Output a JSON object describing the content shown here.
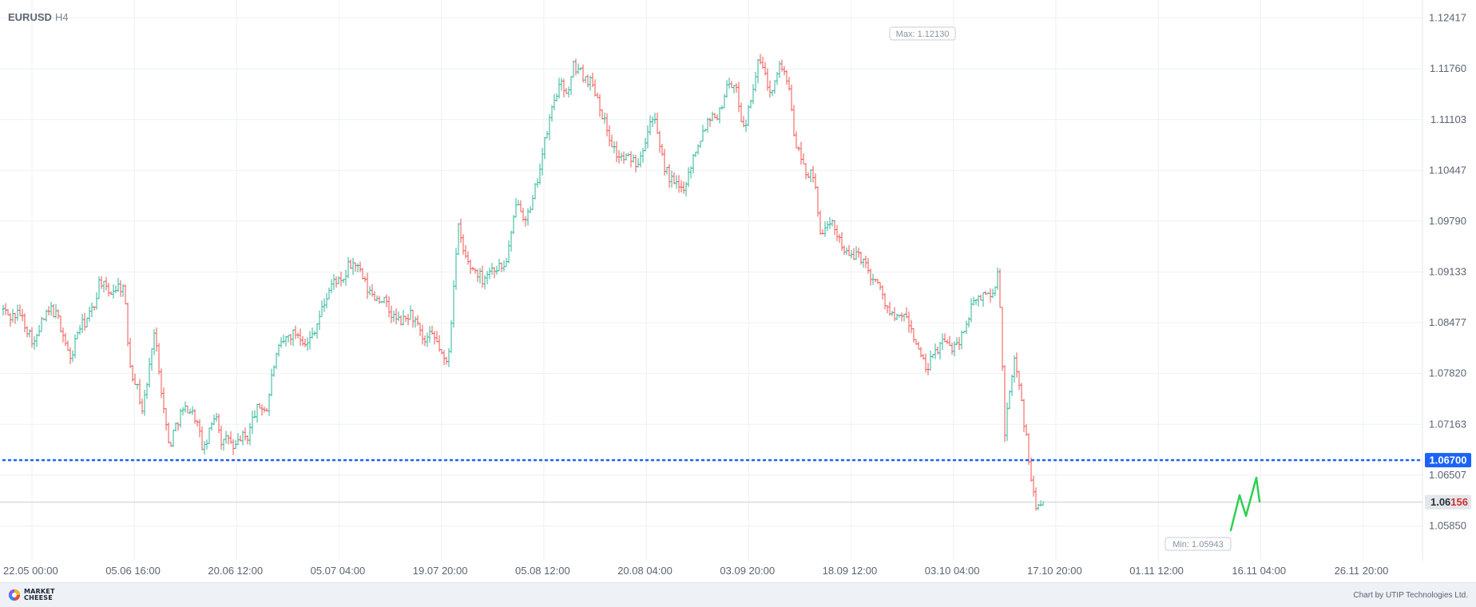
{
  "chart_header": {
    "symbol": "EURUSD",
    "timeframe": "H4"
  },
  "chart_data": {
    "type": "candlestick",
    "symbol": "EURUSD",
    "timeframe": "H4",
    "ylim": [
      1.054,
      1.1265
    ],
    "y_ticks": [
      "1.12417",
      "1.11760",
      "1.11103",
      "1.10447",
      "1.09790",
      "1.09133",
      "1.08477",
      "1.07820",
      "1.07163",
      "1.06507",
      "1.05850"
    ],
    "x_ticks": [
      "22.05 00:00",
      "05.06 16:00",
      "20.06 12:00",
      "05.07 04:00",
      "19.07 20:00",
      "05.08 12:00",
      "20.08 04:00",
      "03.09 20:00",
      "18.09 12:00",
      "03.10 04:00",
      "17.10 20:00",
      "01.11 12:00",
      "16.11 04:00",
      "26.11 20:00"
    ],
    "price_path": [
      [
        0,
        1.087
      ],
      [
        12,
        1.0855
      ],
      [
        25,
        1.086
      ],
      [
        36,
        1.0835
      ],
      [
        44,
        1.082
      ],
      [
        52,
        1.0848
      ],
      [
        64,
        1.0865
      ],
      [
        72,
        1.0855
      ],
      [
        80,
        1.083
      ],
      [
        88,
        1.0798
      ],
      [
        98,
        1.084
      ],
      [
        108,
        1.085
      ],
      [
        118,
        1.087
      ],
      [
        125,
        1.0905
      ],
      [
        135,
        1.0885
      ],
      [
        147,
        1.0895
      ],
      [
        155,
        1.0893
      ],
      [
        160,
        1.0825
      ],
      [
        164,
        1.0785
      ],
      [
        170,
        1.0772
      ],
      [
        178,
        1.0735
      ],
      [
        186,
        1.078
      ],
      [
        192,
        1.084
      ],
      [
        198,
        1.08
      ],
      [
        205,
        1.0735
      ],
      [
        212,
        1.0685
      ],
      [
        218,
        1.071
      ],
      [
        226,
        1.073
      ],
      [
        235,
        1.0738
      ],
      [
        245,
        1.0725
      ],
      [
        255,
        1.068
      ],
      [
        262,
        1.0705
      ],
      [
        270,
        1.0735
      ],
      [
        278,
        1.069
      ],
      [
        286,
        1.07
      ],
      [
        293,
        1.068
      ],
      [
        300,
        1.07
      ],
      [
        310,
        1.07
      ],
      [
        318,
        1.073
      ],
      [
        326,
        1.074
      ],
      [
        334,
        1.0735
      ],
      [
        342,
        1.079
      ],
      [
        350,
        1.0815
      ],
      [
        360,
        1.083
      ],
      [
        372,
        1.0835
      ],
      [
        385,
        1.082
      ],
      [
        396,
        1.0845
      ],
      [
        405,
        1.087
      ],
      [
        412,
        1.089
      ],
      [
        420,
        1.0905
      ],
      [
        428,
        1.0895
      ],
      [
        436,
        1.092
      ],
      [
        444,
        1.0925
      ],
      [
        452,
        1.091
      ],
      [
        460,
        1.089
      ],
      [
        470,
        1.088
      ],
      [
        480,
        1.0878
      ],
      [
        488,
        1.086
      ],
      [
        498,
        1.085
      ],
      [
        506,
        1.085
      ],
      [
        514,
        1.086
      ],
      [
        522,
        1.0845
      ],
      [
        530,
        1.082
      ],
      [
        538,
        1.083
      ],
      [
        546,
        1.0825
      ],
      [
        552,
        1.081
      ],
      [
        558,
        1.079
      ],
      [
        563,
        1.082
      ],
      [
        568,
        1.09
      ],
      [
        574,
        1.097
      ],
      [
        580,
        1.094
      ],
      [
        588,
        1.092
      ],
      [
        596,
        1.0915
      ],
      [
        604,
        1.0905
      ],
      [
        612,
        1.0915
      ],
      [
        622,
        1.092
      ],
      [
        632,
        1.092
      ],
      [
        640,
        1.096
      ],
      [
        648,
        1.101
      ],
      [
        656,
        1.0985
      ],
      [
        664,
        1.099
      ],
      [
        672,
        1.103
      ],
      [
        680,
        1.107
      ],
      [
        688,
        1.111
      ],
      [
        696,
        1.1145
      ],
      [
        704,
        1.1155
      ],
      [
        712,
        1.1145
      ],
      [
        718,
        1.118
      ],
      [
        724,
        1.1175
      ],
      [
        732,
        1.1165
      ],
      [
        740,
        1.116
      ],
      [
        748,
        1.114
      ],
      [
        756,
        1.111
      ],
      [
        764,
        1.1085
      ],
      [
        772,
        1.1065
      ],
      [
        780,
        1.106
      ],
      [
        790,
        1.106
      ],
      [
        798,
        1.1055
      ],
      [
        806,
        1.108
      ],
      [
        812,
        1.11
      ],
      [
        818,
        1.112
      ],
      [
        824,
        1.108
      ],
      [
        830,
        1.1055
      ],
      [
        838,
        1.1035
      ],
      [
        846,
        1.1025
      ],
      [
        854,
        1.102
      ],
      [
        862,
        1.104
      ],
      [
        870,
        1.107
      ],
      [
        878,
        1.109
      ],
      [
        886,
        1.111
      ],
      [
        894,
        1.112
      ],
      [
        900,
        1.1115
      ],
      [
        906,
        1.114
      ],
      [
        912,
        1.116
      ],
      [
        918,
        1.1155
      ],
      [
        924,
        1.114
      ],
      [
        930,
        1.11
      ],
      [
        936,
        1.1115
      ],
      [
        942,
        1.115
      ],
      [
        948,
        1.118
      ],
      [
        954,
        1.1185
      ],
      [
        960,
        1.1155
      ],
      [
        966,
        1.115
      ],
      [
        972,
        1.1175
      ],
      [
        978,
        1.118
      ],
      [
        984,
        1.117
      ],
      [
        990,
        1.113
      ],
      [
        996,
        1.108
      ],
      [
        1002,
        1.106
      ],
      [
        1008,
        1.1045
      ],
      [
        1014,
        1.104
      ],
      [
        1020,
        1.103
      ],
      [
        1026,
        1.097
      ],
      [
        1034,
        1.0965
      ],
      [
        1042,
        1.0975
      ],
      [
        1050,
        1.096
      ],
      [
        1058,
        1.094
      ],
      [
        1066,
        1.093
      ],
      [
        1074,
        1.094
      ],
      [
        1082,
        1.0925
      ],
      [
        1090,
        1.091
      ],
      [
        1098,
        1.09
      ],
      [
        1106,
        1.088
      ],
      [
        1114,
        1.086
      ],
      [
        1122,
        1.085
      ],
      [
        1130,
        1.086
      ],
      [
        1138,
        1.0845
      ],
      [
        1146,
        1.0825
      ],
      [
        1154,
        1.08
      ],
      [
        1160,
        1.0785
      ],
      [
        1166,
        1.08
      ],
      [
        1172,
        1.081
      ],
      [
        1180,
        1.0825
      ],
      [
        1188,
        1.0815
      ],
      [
        1196,
        1.082
      ],
      [
        1204,
        1.083
      ],
      [
        1212,
        1.0855
      ],
      [
        1220,
        1.0875
      ],
      [
        1228,
        1.088
      ],
      [
        1236,
        1.089
      ],
      [
        1242,
        1.0875
      ],
      [
        1246,
        1.09
      ],
      [
        1250,
        1.091
      ],
      [
        1252,
        1.087
      ],
      [
        1255,
        1.079
      ],
      [
        1258,
        1.07
      ],
      [
        1262,
        1.074
      ],
      [
        1266,
        1.077
      ],
      [
        1270,
        1.08
      ],
      [
        1274,
        1.078
      ],
      [
        1278,
        1.076
      ],
      [
        1282,
        1.072
      ],
      [
        1286,
        1.069
      ],
      [
        1290,
        1.065
      ],
      [
        1294,
        1.063
      ],
      [
        1298,
        1.0605
      ],
      [
        1302,
        1.0612
      ],
      [
        1305,
        1.062
      ],
      [
        1307,
        1.06156
      ]
    ],
    "current_price": "1.06156",
    "max_label": "Max: 1.12130",
    "min_label": "Min: 1.05943",
    "levels": [
      {
        "value": 1.067,
        "label": "1.06700",
        "style": "dotted",
        "color": "#1a63f5"
      }
    ],
    "projection_arrow": {
      "color": "#2ed052",
      "direction": "up",
      "target": 1.067
    },
    "colors": {
      "bull": "#2bb59a",
      "bear": "#ef5350",
      "grid": "#eef0f3",
      "axis_text": "#5b6472"
    }
  },
  "footer": {
    "brand_line1": "MARKET",
    "brand_line2": "CHEESE",
    "credit": "Chart by UTIP Technologies Ltd."
  }
}
